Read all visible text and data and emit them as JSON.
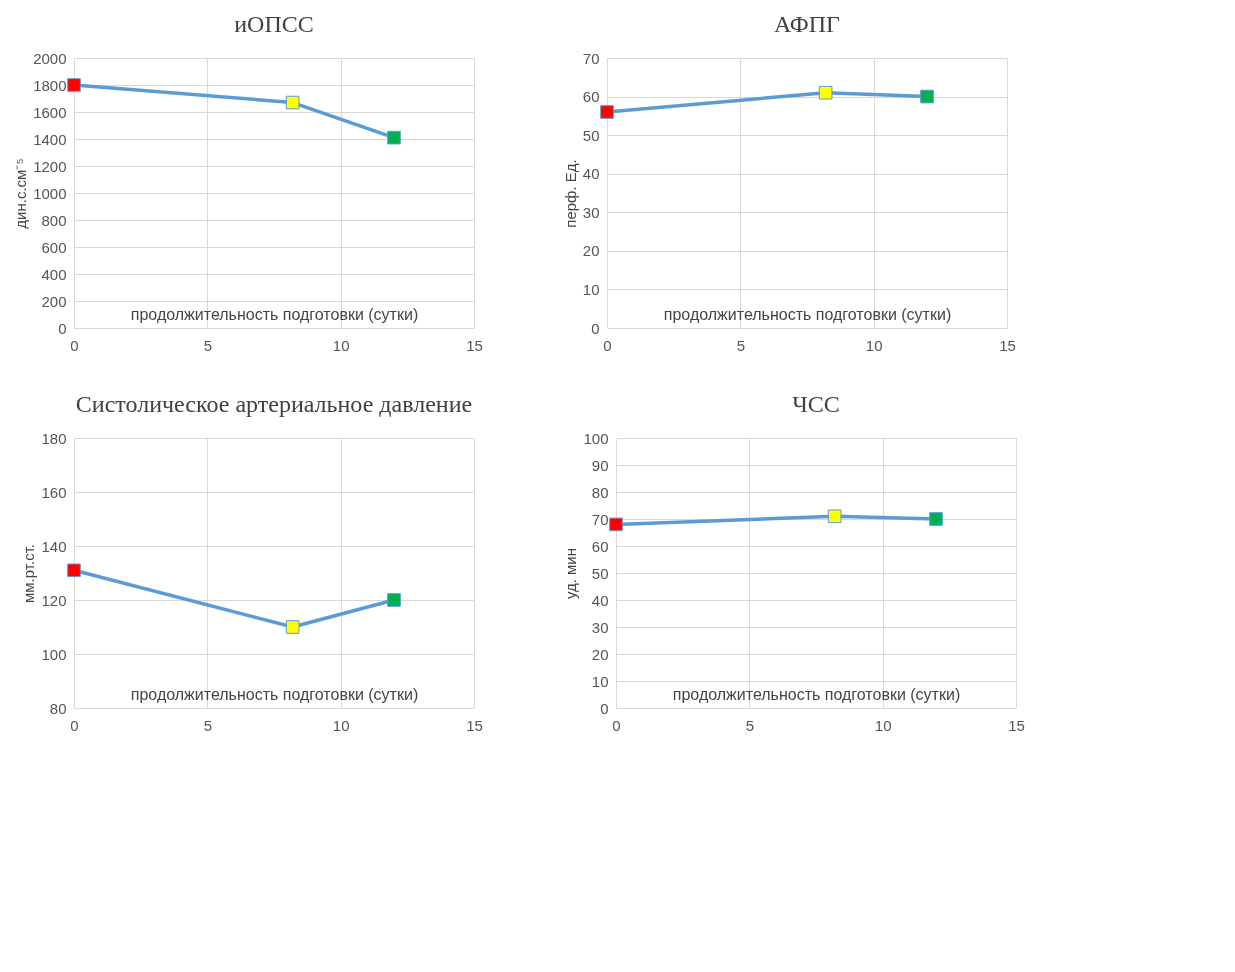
{
  "chart_data": [
    {
      "type": "line",
      "title": "иОПСС",
      "xlabel": "продолжительность подготовки (сутки)",
      "ylabel": "дин.с.см⁻⁵",
      "x": [
        0,
        8.2,
        12
      ],
      "series": [
        {
          "color": "#5b9bd5",
          "colors": [
            "#ff0000",
            "#ffff00",
            "#00b050"
          ],
          "values": [
            1800,
            1670,
            1410
          ]
        }
      ],
      "xlim": [
        0,
        15
      ],
      "xticks": [
        0,
        5,
        10,
        15
      ],
      "ylim": [
        0,
        2000
      ],
      "yticks": [
        0,
        200,
        400,
        600,
        800,
        1000,
        1200,
        1400,
        1600,
        1800,
        2000
      ],
      "grid": true,
      "marker": "square"
    },
    {
      "type": "line",
      "title": "АФПГ",
      "xlabel": "продолжительность подготовки (сутки)",
      "ylabel": "перф. Ед.",
      "x": [
        0,
        8.2,
        12
      ],
      "series": [
        {
          "color": "#5b9bd5",
          "colors": [
            "#ff0000",
            "#ffff00",
            "#00b050"
          ],
          "values": [
            56,
            61,
            60
          ]
        }
      ],
      "xlim": [
        0,
        15
      ],
      "xticks": [
        0,
        5,
        10,
        15
      ],
      "ylim": [
        0,
        70
      ],
      "yticks": [
        0,
        10,
        20,
        30,
        40,
        50,
        60,
        70
      ],
      "grid": true,
      "marker": "square"
    },
    {
      "type": "line",
      "title": "Систолическое артериальное давление",
      "xlabel": "продолжительность подготовки (сутки)",
      "ylabel": "мм.рт.ст.",
      "x": [
        0,
        8.2,
        12
      ],
      "series": [
        {
          "color": "#5b9bd5",
          "colors": [
            "#ff0000",
            "#ffff00",
            "#00b050"
          ],
          "values": [
            131,
            110,
            120
          ]
        }
      ],
      "xlim": [
        0,
        15
      ],
      "xticks": [
        0,
        5,
        10,
        15
      ],
      "ylim": [
        80,
        180
      ],
      "yticks": [
        80,
        100,
        120,
        140,
        160,
        180
      ],
      "grid": true,
      "marker": "square"
    },
    {
      "type": "line",
      "title": "ЧСС",
      "xlabel": "продолжительность подготовки (сутки)",
      "ylabel": "уд. мин",
      "x": [
        0,
        8.2,
        12
      ],
      "series": [
        {
          "color": "#5b9bd5",
          "colors": [
            "#ff0000",
            "#ffff00",
            "#00b050"
          ],
          "values": [
            68,
            71,
            70
          ]
        }
      ],
      "xlim": [
        0,
        15
      ],
      "xticks": [
        0,
        5,
        10,
        15
      ],
      "ylim": [
        0,
        100
      ],
      "yticks": [
        0,
        10,
        20,
        30,
        40,
        50,
        60,
        70,
        80,
        90,
        100
      ],
      "grid": true,
      "marker": "square"
    }
  ]
}
